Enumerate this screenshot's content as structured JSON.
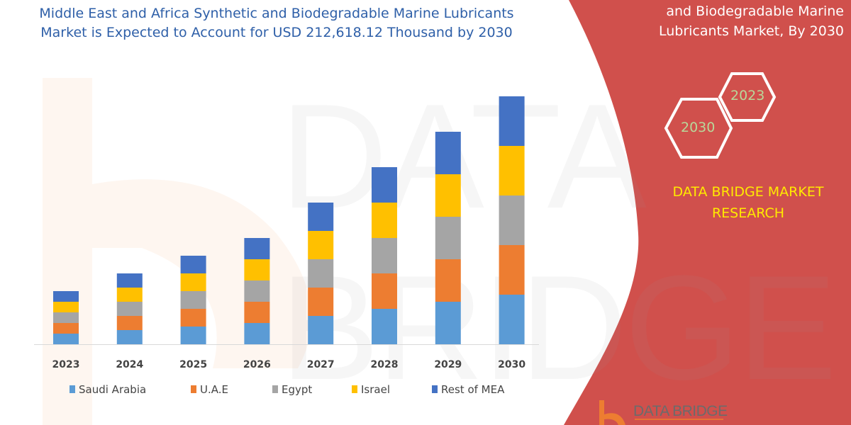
{
  "title": "Middle East and Africa Synthetic and Biodegradable Marine Lubricants Market is Expected to Account for USD 212,618.12 Thousand by 2030",
  "side_panel": {
    "title": "and Biodegradable Marine Lubricants Market, By 2030",
    "hex_years": [
      "2023",
      "2030"
    ],
    "brand": "DATA BRIDGE MARKET RESEARCH",
    "logo_text": "DATA BRIDGE",
    "watermark": "DATA BRIDGE"
  },
  "colors": {
    "panel": "#d0504c",
    "title": "#2e5fa8",
    "brand": "#ffea00"
  },
  "chart_data": {
    "type": "bar",
    "stacked": true,
    "title": "",
    "xlabel": "",
    "ylabel": "",
    "y_axis_shown": false,
    "grid": false,
    "legend_position": "bottom",
    "categories": [
      "2023",
      "2024",
      "2025",
      "2026",
      "2027",
      "2028",
      "2029",
      "2030"
    ],
    "ylim": [
      0,
      350
    ],
    "series": [
      {
        "name": "Saudi Arabia",
        "color": "#5b9bd5",
        "values": [
          15,
          20,
          25,
          30,
          40,
          50,
          60,
          70
        ]
      },
      {
        "name": "U.A.E",
        "color": "#ed7d31",
        "values": [
          15,
          20,
          25,
          30,
          40,
          50,
          60,
          70
        ]
      },
      {
        "name": "Egypt",
        "color": "#a5a5a5",
        "values": [
          15,
          20,
          25,
          30,
          40,
          50,
          60,
          70
        ]
      },
      {
        "name": "Israel",
        "color": "#ffc000",
        "values": [
          15,
          20,
          25,
          30,
          40,
          50,
          60,
          70
        ]
      },
      {
        "name": "Rest of MEA",
        "color": "#4472c4",
        "values": [
          15,
          20,
          25,
          30,
          40,
          50,
          60,
          70
        ]
      }
    ]
  }
}
